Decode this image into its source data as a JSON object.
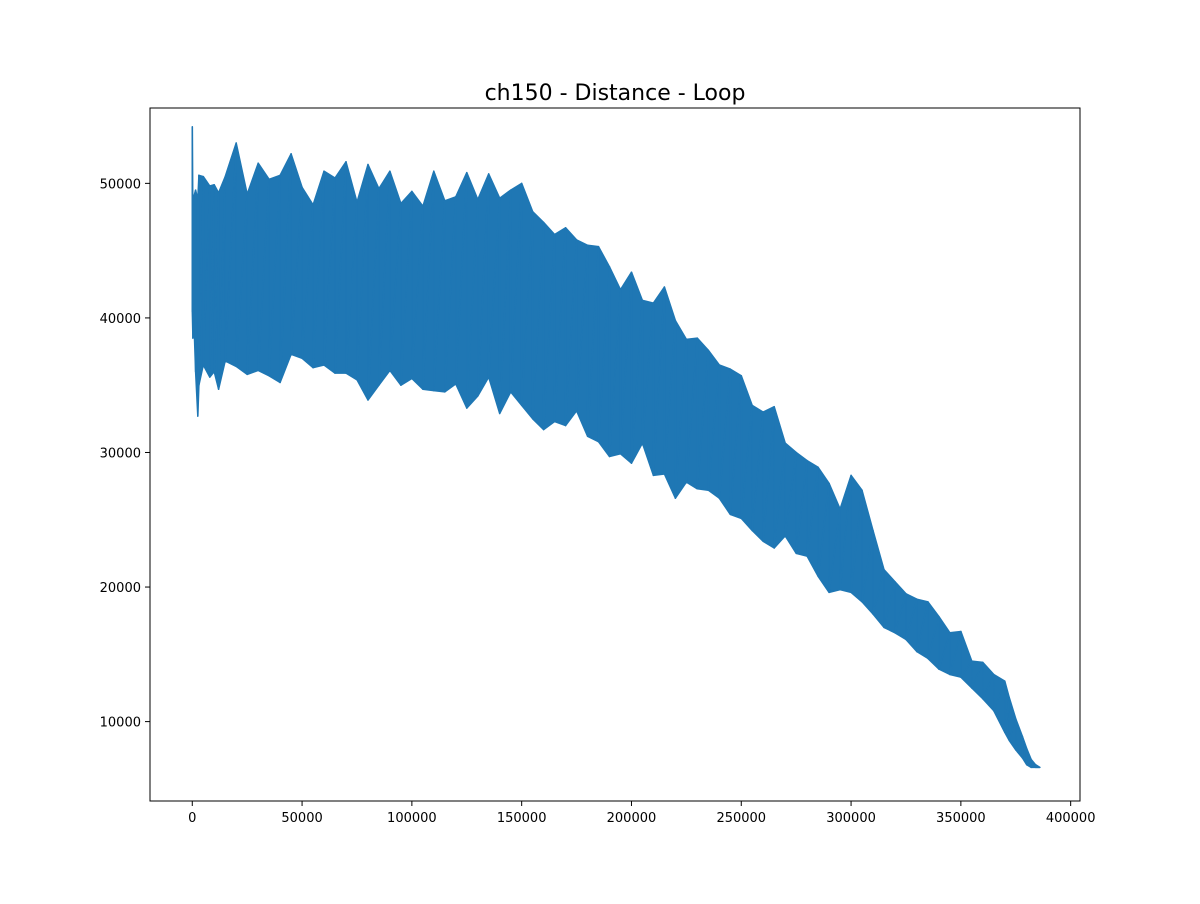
{
  "chart_data": {
    "type": "line",
    "title": "ch150 - Distance - Loop",
    "xlabel": "",
    "ylabel": "",
    "xlim": [
      -19250,
      404250
    ],
    "ylim": [
      4100,
      55600
    ],
    "xticks": [
      0,
      50000,
      100000,
      150000,
      200000,
      250000,
      300000,
      350000,
      400000
    ],
    "yticks": [
      10000,
      20000,
      30000,
      40000,
      50000
    ],
    "grid": false,
    "legend": "none",
    "color": "#1f77b4",
    "series": [
      {
        "x": [
          0,
          300,
          700,
          1500,
          2500,
          3000,
          5000,
          8000,
          10000,
          12000,
          15000,
          20000,
          25000,
          30000,
          35000,
          40000,
          45000,
          50000,
          55000,
          60000,
          65000,
          70000,
          75000,
          80000,
          85000,
          90000,
          95000,
          100000,
          105000,
          110000,
          115000,
          120000,
          125000,
          130000,
          135000,
          140000,
          145000,
          150000,
          155000,
          160000,
          165000,
          170000,
          175000,
          180000,
          185000,
          190000,
          195000,
          200000,
          205000,
          210000,
          215000,
          220000,
          225000,
          230000,
          235000,
          240000,
          245000,
          250000,
          255000,
          260000,
          265000,
          270000,
          275000,
          280000,
          285000,
          290000,
          295000,
          300000,
          305000,
          310000,
          315000,
          320000,
          325000,
          330000,
          335000,
          340000,
          345000,
          350000,
          355000,
          360000,
          365000,
          370000,
          372000,
          375000,
          378000,
          380000,
          382000,
          384000,
          386000
        ],
        "low": [
          40500,
          38500,
          40000,
          36000,
          32700,
          35000,
          36500,
          35600,
          36000,
          34700,
          36800,
          36400,
          35800,
          36100,
          35700,
          35200,
          37300,
          37000,
          36300,
          36500,
          35900,
          35900,
          35400,
          33900,
          35000,
          36100,
          35000,
          35500,
          34700,
          34600,
          34500,
          35100,
          33300,
          34200,
          35600,
          32900,
          34500,
          33500,
          32500,
          31700,
          32300,
          32000,
          33100,
          31200,
          30800,
          29700,
          29900,
          29200,
          30700,
          28300,
          28400,
          26600,
          27800,
          27300,
          27200,
          26600,
          25400,
          25100,
          24200,
          23400,
          22900,
          23800,
          22500,
          22300,
          20800,
          19600,
          19800,
          19600,
          18900,
          18000,
          17000,
          16600,
          16100,
          15200,
          14700,
          13900,
          13500,
          13300,
          12500,
          11700,
          10800,
          9200,
          8600,
          7900,
          7300,
          6800,
          6600,
          6600,
          6600
        ],
        "high": [
          54200,
          47300,
          49000,
          49500,
          48800,
          50600,
          50500,
          49800,
          49900,
          49300,
          50500,
          53000,
          49200,
          51500,
          50300,
          50600,
          52200,
          49700,
          48400,
          50900,
          50400,
          51600,
          48600,
          51400,
          49600,
          50900,
          48500,
          49400,
          48300,
          50900,
          48700,
          49000,
          50800,
          48800,
          50700,
          48900,
          49500,
          50000,
          47900,
          47100,
          46200,
          46700,
          45800,
          45400,
          45300,
          43800,
          42100,
          43400,
          41300,
          41100,
          42300,
          39800,
          38400,
          38500,
          37600,
          36500,
          36200,
          35700,
          33500,
          33000,
          33400,
          30700,
          30000,
          29400,
          28900,
          27700,
          25800,
          28300,
          27200,
          24200,
          21300,
          20400,
          19500,
          19100,
          18900,
          17800,
          16600,
          16700,
          14500,
          14400,
          13500,
          13000,
          11800,
          10200,
          8900,
          8000,
          7200,
          6800,
          6600
        ]
      }
    ]
  }
}
